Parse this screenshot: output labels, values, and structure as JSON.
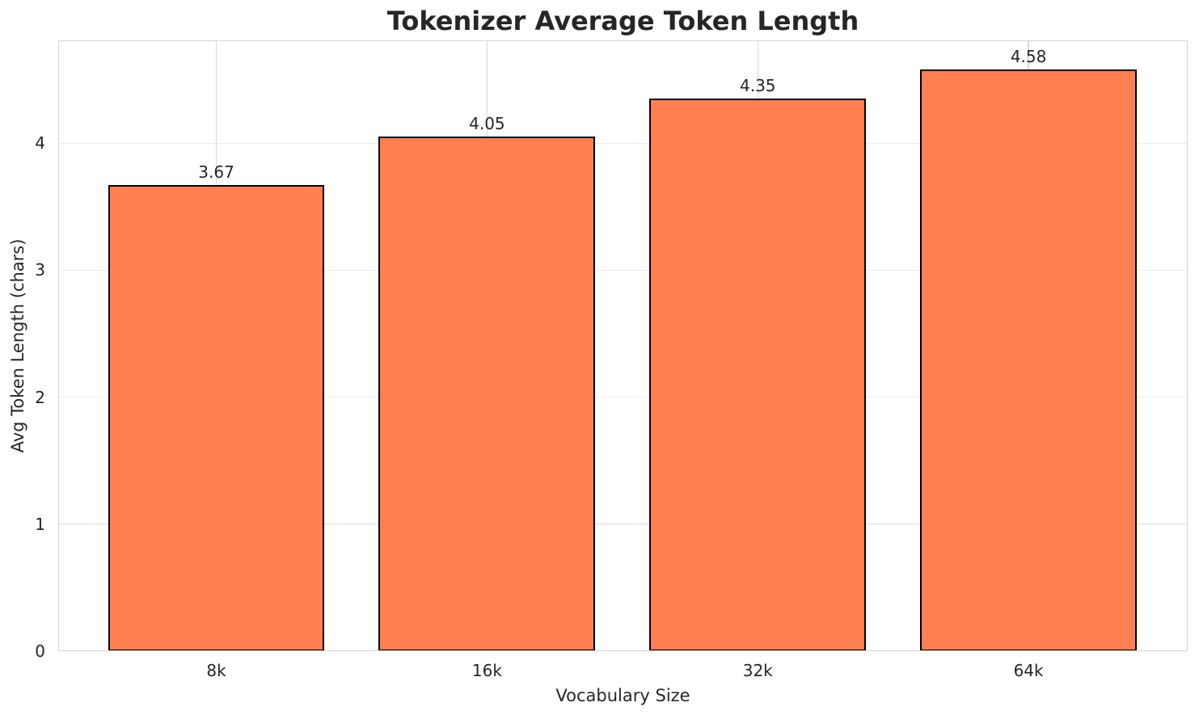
{
  "chart_data": {
    "type": "bar",
    "title": "Tokenizer Average Token Length",
    "xlabel": "Vocabulary Size",
    "ylabel": "Avg Token Length (chars)",
    "categories": [
      "8k",
      "16k",
      "32k",
      "64k"
    ],
    "values": [
      3.67,
      4.05,
      4.35,
      4.58
    ],
    "value_labels": [
      "3.67",
      "4.05",
      "4.35",
      "4.58"
    ],
    "yticks": [
      0,
      1,
      2,
      3,
      4
    ],
    "ytick_labels": [
      "0",
      "1",
      "2",
      "3",
      "4"
    ],
    "ylim": [
      0,
      4.81
    ],
    "grid": true,
    "legend": "none",
    "colors": {
      "bar_fill": "#FF7F50",
      "bar_edge": "#000000",
      "grid_h": "#ececec",
      "grid_v": "#d9d9d9",
      "spine": "#d4d4d4",
      "text": "#262626"
    }
  }
}
